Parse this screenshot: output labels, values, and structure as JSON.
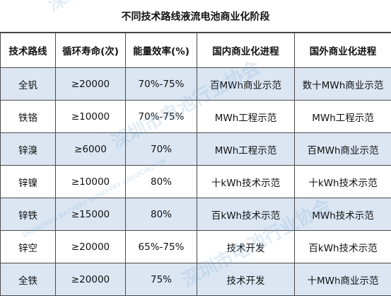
{
  "title": "不同技术路线液流电池商业化阶段",
  "headers": [
    "技术路线",
    "循环寿命(次)",
    "能量效率(%)",
    "国内商业化进程",
    "国外商业化进程"
  ],
  "rows": [
    [
      "全钒",
      "≥20000",
      "70%-75%",
      "百MWh商业示范",
      "数十MWh商业示范"
    ],
    [
      "铁铬",
      "≥10000",
      "70%-75%",
      "MWh工程示范",
      "MWh工程示范"
    ],
    [
      "锌溴",
      "≥6000",
      "70%",
      "MWh工程示范",
      "百MWh商业示范"
    ],
    [
      "锌镍",
      "≥10000",
      "80%",
      "十kWh技术示范",
      "十kWh技术示范"
    ],
    [
      "锌铁",
      "≥15000",
      "80%",
      "百kWh技术示范",
      "MWh技术示范"
    ],
    [
      "锌空",
      "≥20000",
      "65%-75%",
      "技术开发",
      "百kWh技术示范"
    ],
    [
      "全铁",
      "≥20000",
      "75%",
      "技术开发",
      "十MWh商业示范"
    ]
  ],
  "watermark": {
    "main": "深圳市电池行业协会",
    "sub": "SHENZHEN BATTERY INDUSTRY ASSOCIATION"
  }
}
